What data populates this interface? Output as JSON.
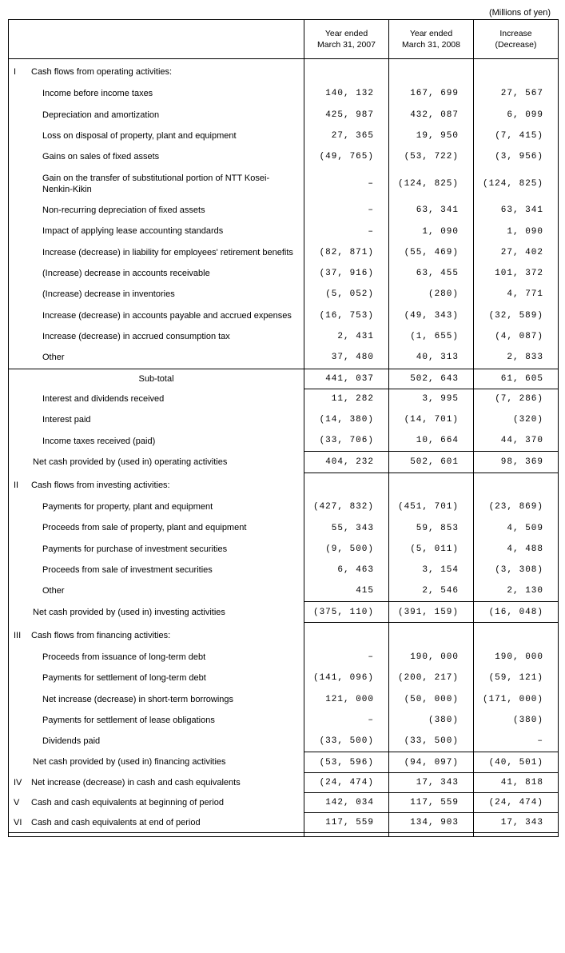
{
  "unit": "(Millions of yen)",
  "headers": {
    "col1": "Year ended\nMarch 31, 2007",
    "col2": "Year ended\nMarch 31, 2008",
    "col3": "Increase\n(Decrease)"
  },
  "s1": {
    "roman": "I",
    "title": "Cash flows from operating activities:",
    "r1": {
      "l": "Income before income taxes",
      "a": "140, 132",
      "b": "167, 699",
      "c": "27, 567"
    },
    "r2": {
      "l": "Depreciation and amortization",
      "a": "425, 987",
      "b": "432, 087",
      "c": "6, 099"
    },
    "r3": {
      "l": "Loss on disposal of property, plant and equipment",
      "a": "27, 365",
      "b": "19, 950",
      "c": "(7, 415)"
    },
    "r4": {
      "l": "Gains on sales of fixed assets",
      "a": "(49, 765)",
      "b": "(53, 722)",
      "c": "(3, 956)"
    },
    "r5": {
      "l": "Gain on the transfer of substitutional portion of NTT Kosei-Nenkin-Kikin",
      "a": "–",
      "b": "(124, 825)",
      "c": "(124, 825)"
    },
    "r6": {
      "l": "Non-recurring depreciation of fixed assets",
      "a": "–",
      "b": "63, 341",
      "c": "63, 341"
    },
    "r7": {
      "l": "Impact of applying lease accounting standards",
      "a": "–",
      "b": "1, 090",
      "c": "1, 090"
    },
    "r8": {
      "l": "Increase (decrease) in liability for employees' retirement benefits",
      "a": "(82, 871)",
      "b": "(55, 469)",
      "c": "27, 402"
    },
    "r9": {
      "l": "(Increase) decrease in accounts receivable",
      "a": "(37, 916)",
      "b": "63, 455",
      "c": "101, 372"
    },
    "r10": {
      "l": "(Increase) decrease in inventories",
      "a": "(5, 052)",
      "b": "(280)",
      "c": "4, 771"
    },
    "r11": {
      "l": "Increase (decrease) in accounts payable and accrued expenses",
      "a": "(16, 753)",
      "b": "(49, 343)",
      "c": "(32, 589)"
    },
    "r12": {
      "l": "Increase (decrease) in accrued consumption tax",
      "a": "2, 431",
      "b": "(1, 655)",
      "c": "(4, 087)"
    },
    "r13": {
      "l": "Other",
      "a": "37, 480",
      "b": "40, 313",
      "c": "2, 833"
    },
    "sub": {
      "l": "Sub-total",
      "a": "441, 037",
      "b": "502, 643",
      "c": "61, 605"
    },
    "r14": {
      "l": "Interest and dividends received",
      "a": "11, 282",
      "b": "3, 995",
      "c": "(7, 286)"
    },
    "r15": {
      "l": "Interest paid",
      "a": "(14, 380)",
      "b": "(14, 701)",
      "c": "(320)"
    },
    "r16": {
      "l": "Income taxes received (paid)",
      "a": "(33, 706)",
      "b": "10, 664",
      "c": "44, 370"
    },
    "net": {
      "l": "Net cash provided by (used in) operating activities",
      "a": "404, 232",
      "b": "502, 601",
      "c": "98, 369"
    }
  },
  "s2": {
    "roman": "II",
    "title": "Cash flows from investing activities:",
    "r1": {
      "l": "Payments for property, plant and equipment",
      "a": "(427, 832)",
      "b": "(451, 701)",
      "c": "(23, 869)"
    },
    "r2": {
      "l": "Proceeds from sale of property, plant and equipment",
      "a": "55, 343",
      "b": "59, 853",
      "c": "4, 509"
    },
    "r3": {
      "l": "Payments for purchase of investment securities",
      "a": "(9, 500)",
      "b": "(5, 011)",
      "c": "4, 488"
    },
    "r4": {
      "l": "Proceeds from sale of investment securities",
      "a": "6, 463",
      "b": "3, 154",
      "c": "(3, 308)"
    },
    "r5": {
      "l": "Other",
      "a": "415",
      "b": "2, 546",
      "c": "2, 130"
    },
    "net": {
      "l": "Net cash provided by (used in) investing activities",
      "a": "(375, 110)",
      "b": "(391, 159)",
      "c": "(16, 048)"
    }
  },
  "s3": {
    "roman": "III",
    "title": "Cash flows from financing activities:",
    "r1": {
      "l": "Proceeds from issuance of long-term debt",
      "a": "–",
      "b": "190, 000",
      "c": "190, 000"
    },
    "r2": {
      "l": "Payments for settlement of long-term debt",
      "a": "(141, 096)",
      "b": "(200, 217)",
      "c": "(59, 121)"
    },
    "r3": {
      "l": "Net increase (decrease) in short-term borrowings",
      "a": "121, 000",
      "b": "(50, 000)",
      "c": "(171, 000)"
    },
    "r4": {
      "l": "Payments for settlement of lease obligations",
      "a": "–",
      "b": "(380)",
      "c": "(380)"
    },
    "r5": {
      "l": "Dividends paid",
      "a": "(33, 500)",
      "b": "(33, 500)",
      "c": "–"
    },
    "net": {
      "l": "Net cash provided by (used in) financing activities",
      "a": "(53, 596)",
      "b": "(94, 097)",
      "c": "(40, 501)"
    }
  },
  "s4": {
    "roman": "IV",
    "l": "Net increase (decrease) in cash and cash equivalents",
    "a": "(24, 474)",
    "b": "17, 343",
    "c": "41, 818"
  },
  "s5": {
    "roman": "V",
    "l": "Cash and cash equivalents at beginning of period",
    "a": "142, 034",
    "b": "117, 559",
    "c": "(24, 474)"
  },
  "s6": {
    "roman": "VI",
    "l": "Cash and cash equivalents at end of period",
    "a": "117, 559",
    "b": "134, 903",
    "c": "17, 343"
  }
}
